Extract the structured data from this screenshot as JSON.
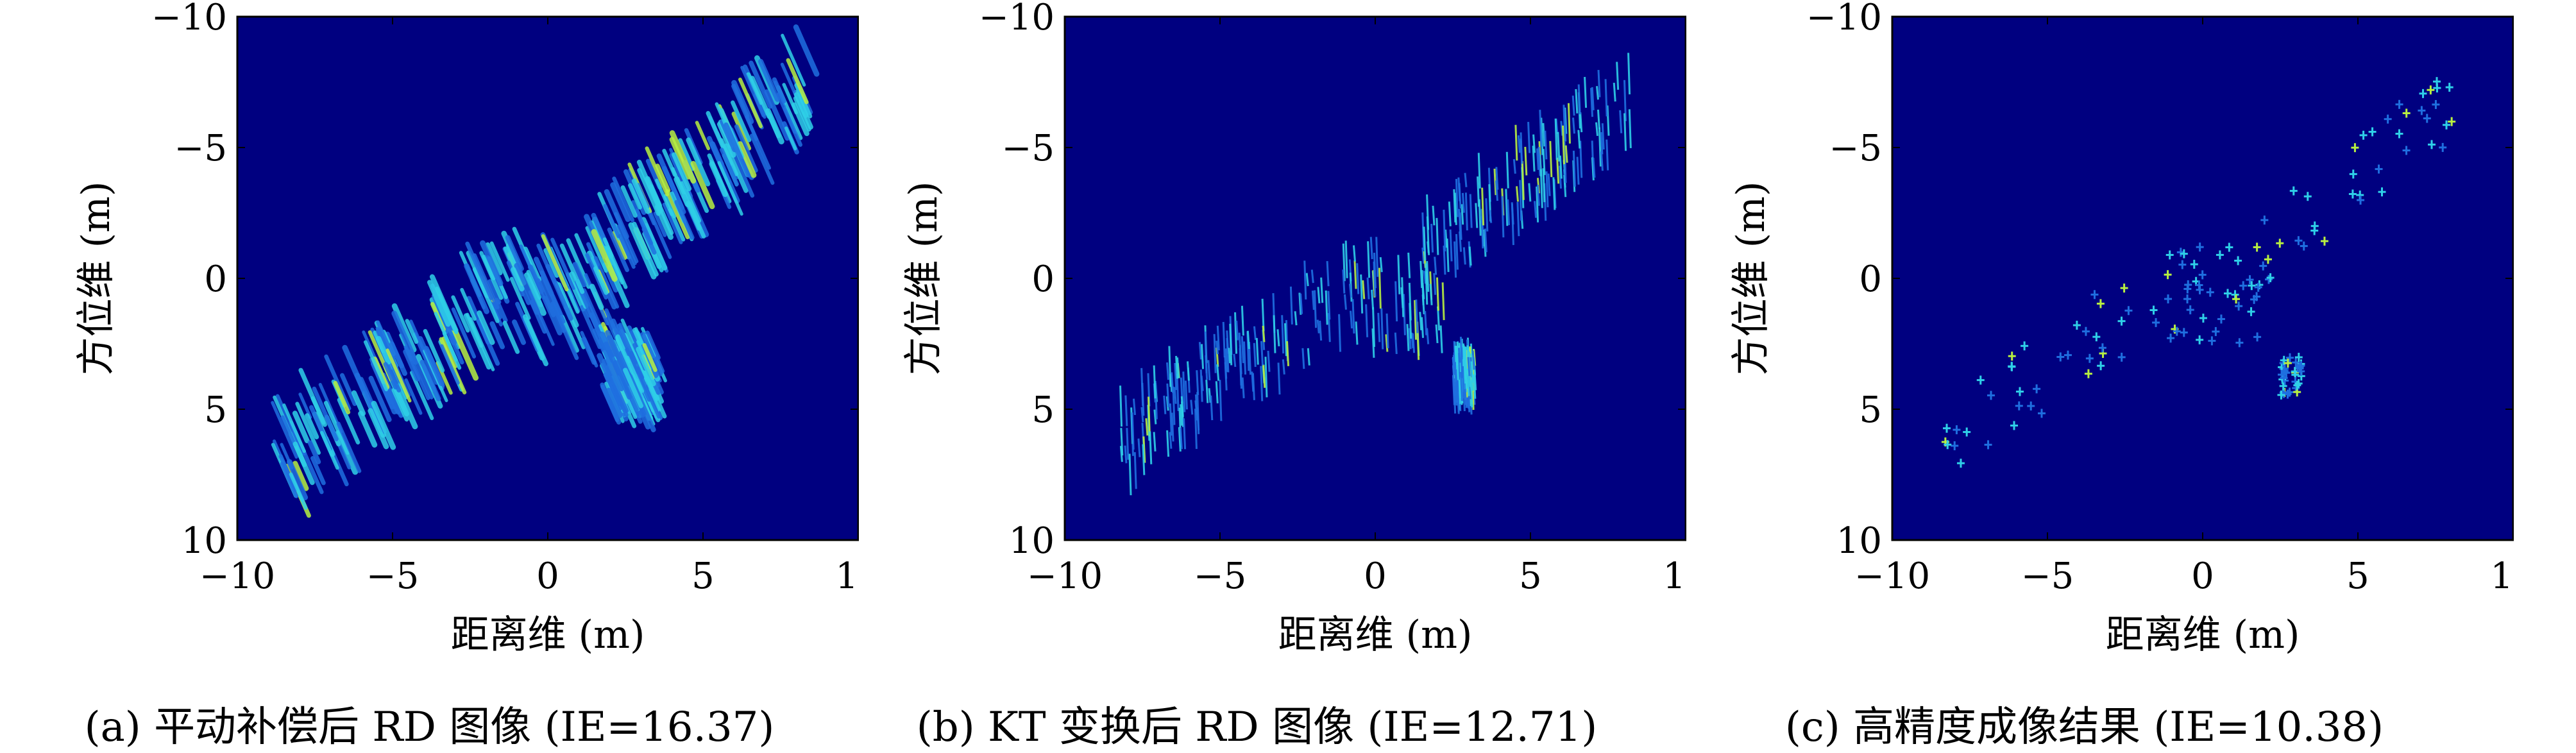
{
  "colors": {
    "background": "#000080",
    "scatter_low": "#1f6fe0",
    "scatter_mid": "#2fd0e8",
    "scatter_high": "#b8f040",
    "axes": "#000000"
  },
  "chart_data": [
    {
      "type": "heatmap",
      "panel": "a",
      "caption": "(a) 平动补偿后 RD 图像 (IE=16.37)",
      "xlabel": "距离维 (m)",
      "ylabel": "方位维 (m)",
      "xlim": [
        -10,
        10
      ],
      "ylim": [
        -10,
        10
      ],
      "y_axis_reversed": true,
      "xticks": [
        "−10",
        "−5",
        "0",
        "5",
        "10"
      ],
      "yticks": [
        "−10",
        "−5",
        "0",
        "5",
        "10"
      ],
      "scatterer_layout": {
        "clusters": [
          {
            "name": "left-panel",
            "x_range": [
              -8.5,
              -1.5
            ],
            "y_range": [
              0.5,
              7
            ],
            "style": "smeared"
          },
          {
            "name": "body",
            "x_range": [
              -1.2,
              2.2
            ],
            "y_range": [
              -1.2,
              2.8
            ],
            "style": "smeared"
          },
          {
            "name": "right-panel",
            "x_range": [
              1.5,
              8.5
            ],
            "y_range": [
              -7.5,
              -0.5
            ],
            "style": "smeared"
          },
          {
            "name": "tail",
            "x_range": [
              2.0,
              3.5
            ],
            "y_range": [
              2.5,
              4.8
            ],
            "style": "smeared"
          }
        ]
      }
    },
    {
      "type": "heatmap",
      "panel": "b",
      "caption": "(b) KT 变换后 RD 图像 (IE=12.71)",
      "xlabel": "距离维 (m)",
      "ylabel": "方位维 (m)",
      "xlim": [
        -10,
        10
      ],
      "ylim": [
        -10,
        10
      ],
      "y_axis_reversed": true,
      "xticks": [
        "−10",
        "−5",
        "0",
        "5",
        "10"
      ],
      "yticks": [
        "−10",
        "−5",
        "0",
        "5",
        "10"
      ],
      "scatterer_layout": {
        "clusters": [
          {
            "name": "left-panel",
            "x_range": [
              -8.3,
              -1.5
            ],
            "y_range": [
              1.0,
              6.2
            ],
            "style": "streaks"
          },
          {
            "name": "body",
            "x_range": [
              -1.2,
              2.2
            ],
            "y_range": [
              -1.2,
              2.5
            ],
            "style": "streaks"
          },
          {
            "name": "right-panel",
            "x_range": [
              1.5,
              8.2
            ],
            "y_range": [
              -6.8,
              -1.0
            ],
            "style": "streaks"
          },
          {
            "name": "tail",
            "x_range": [
              2.5,
              3.2
            ],
            "y_range": [
              3.0,
              4.5
            ],
            "style": "streaks"
          }
        ]
      }
    },
    {
      "type": "heatmap",
      "panel": "c",
      "caption": "(c) 高精度成像结果 (IE=10.38)",
      "xlabel": "距离维 (m)",
      "ylabel": "方位维 (m)",
      "xlim": [
        -10,
        10
      ],
      "ylim": [
        -10,
        10
      ],
      "y_axis_reversed": true,
      "xticks": [
        "−10",
        "−5",
        "0",
        "5",
        "10"
      ],
      "yticks": [
        "−10",
        "−5",
        "0",
        "5",
        "10"
      ],
      "scatterer_layout": {
        "clusters": [
          {
            "name": "left-panel",
            "x_range": [
              -8.3,
              -1.5
            ],
            "y_range": [
              0.5,
              6.3
            ],
            "style": "points"
          },
          {
            "name": "body",
            "x_range": [
              -1.2,
              2.2
            ],
            "y_range": [
              -1.2,
              2.5
            ],
            "style": "points"
          },
          {
            "name": "right-panel",
            "x_range": [
              1.5,
              8.2
            ],
            "y_range": [
              -7.0,
              -0.5
            ],
            "style": "points"
          },
          {
            "name": "tail",
            "x_range": [
              2.5,
              3.2
            ],
            "y_range": [
              3.0,
              4.5
            ],
            "style": "points"
          }
        ]
      }
    }
  ]
}
